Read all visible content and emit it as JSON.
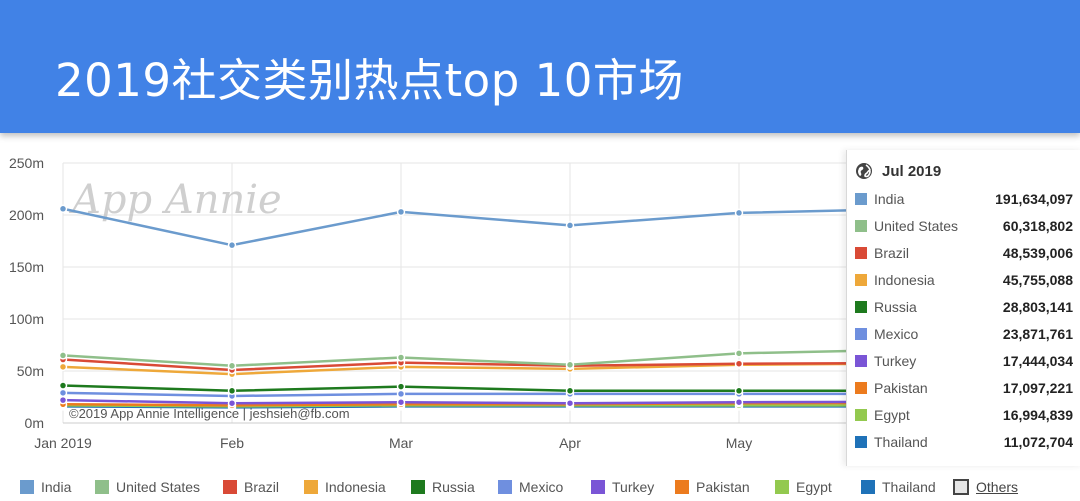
{
  "header": {
    "title": "2019社交类别热点top 10市场"
  },
  "watermark": {
    "logo_text": "App Annie",
    "credit": "©2019 App Annie Intelligence | jeshsieh@fb.com"
  },
  "chart_data": {
    "type": "line",
    "xlabel": "",
    "ylabel": "",
    "categories": [
      "Jan 2019",
      "Feb",
      "Mar",
      "Apr",
      "May"
    ],
    "y_ticks": [
      "0m",
      "50m",
      "100m",
      "150m",
      "200m",
      "250m"
    ],
    "ylim": [
      0,
      250
    ],
    "y_unit": "m",
    "grid": true,
    "series": [
      {
        "name": "India",
        "color": "#6b9bcd",
        "values": [
          206,
          171,
          203,
          190,
          202
        ]
      },
      {
        "name": "United States",
        "color": "#8fbf8a",
        "values": [
          65,
          55,
          63,
          56,
          67
        ]
      },
      {
        "name": "Brazil",
        "color": "#d94a36",
        "values": [
          61,
          51,
          58,
          55,
          57
        ]
      },
      {
        "name": "Indonesia",
        "color": "#eea83a",
        "values": [
          54,
          47,
          54,
          52,
          56
        ]
      },
      {
        "name": "Russia",
        "color": "#1e7a1e",
        "values": [
          36,
          31,
          35,
          31,
          31
        ]
      },
      {
        "name": "Mexico",
        "color": "#6f8fdf",
        "values": [
          29,
          26,
          28,
          28,
          28
        ]
      },
      {
        "name": "Turkey",
        "color": "#7a55d6",
        "values": [
          22,
          19,
          20,
          19,
          20
        ]
      },
      {
        "name": "Pakistan",
        "color": "#ec7b1e",
        "values": [
          18,
          17,
          18,
          18,
          19
        ]
      },
      {
        "name": "Egypt",
        "color": "#93c94f",
        "values": [
          17,
          16,
          17,
          17,
          17
        ]
      },
      {
        "name": "Thailand",
        "color": "#1f72b8",
        "values": [
          16,
          15,
          16,
          16,
          16
        ]
      }
    ],
    "legend": {
      "position": "bottom",
      "others_label": "Others"
    },
    "tooltip": {
      "date": "Jul 2019",
      "rows": [
        {
          "name": "India",
          "value": "191,634,097",
          "color": "#6b9bcd"
        },
        {
          "name": "United States",
          "value": "60,318,802",
          "color": "#8fbf8a"
        },
        {
          "name": "Brazil",
          "value": "48,539,006",
          "color": "#d94a36"
        },
        {
          "name": "Indonesia",
          "value": "45,755,088",
          "color": "#eea83a"
        },
        {
          "name": "Russia",
          "value": "28,803,141",
          "color": "#1e7a1e"
        },
        {
          "name": "Mexico",
          "value": "23,871,761",
          "color": "#6f8fdf"
        },
        {
          "name": "Turkey",
          "value": "17,444,034",
          "color": "#7a55d6"
        },
        {
          "name": "Pakistan",
          "value": "17,097,221",
          "color": "#ec7b1e"
        },
        {
          "name": "Egypt",
          "value": "16,994,839",
          "color": "#93c94f"
        },
        {
          "name": "Thailand",
          "value": "11,072,704",
          "color": "#1f72b8"
        }
      ]
    }
  }
}
